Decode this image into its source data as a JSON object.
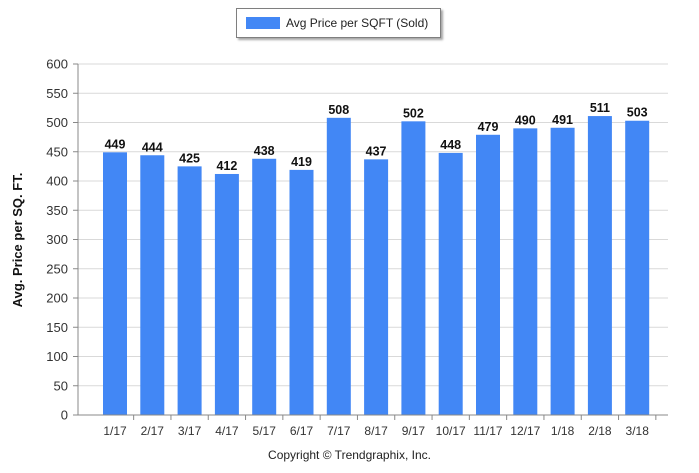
{
  "chart_data": {
    "type": "bar",
    "categories": [
      "1/17",
      "2/17",
      "3/17",
      "4/17",
      "5/17",
      "6/17",
      "7/17",
      "8/17",
      "9/17",
      "10/17",
      "11/17",
      "12/17",
      "1/18",
      "2/18",
      "3/18"
    ],
    "series": [
      {
        "name": "Avg Price per SQFT (Sold)",
        "values": [
          449,
          444,
          425,
          412,
          438,
          419,
          508,
          437,
          502,
          448,
          479,
          490,
          491,
          511,
          503
        ]
      }
    ],
    "ylabel": "Avg. Price per SQ. FT.",
    "xlabel": "",
    "ylim": [
      0,
      600
    ],
    "yticks": [
      0,
      50,
      100,
      150,
      200,
      250,
      300,
      350,
      400,
      450,
      500,
      550,
      600
    ],
    "grid": true,
    "legend_position": "top-center",
    "colors": {
      "bar": "#4287f5",
      "grid": "#d9d9d9",
      "axis": "#888888"
    }
  },
  "copyright": "Copyright © Trendgraphix, Inc."
}
